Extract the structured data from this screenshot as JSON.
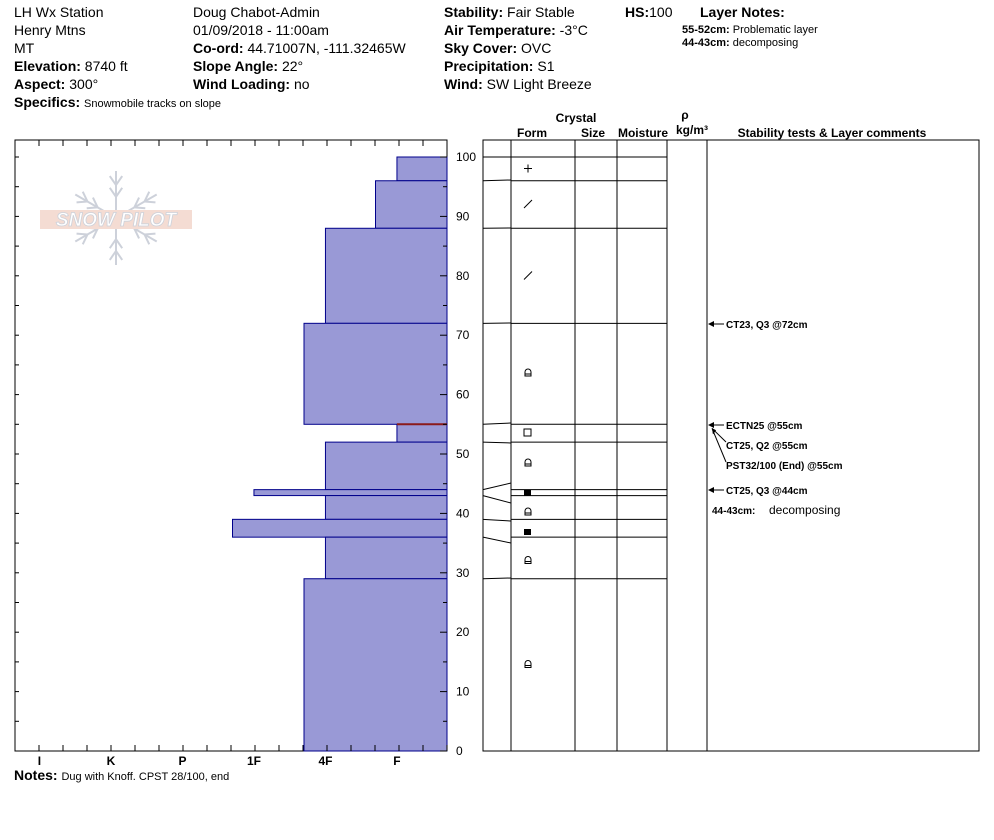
{
  "header": {
    "location": "LH Wx Station",
    "range": "Henry Mtns",
    "state": "MT",
    "elevation_label": "Elevation:",
    "elevation_value": "8740 ft",
    "aspect_label": "Aspect:",
    "aspect_value": "300°",
    "specifics_label": "Specifics:",
    "specifics_value": "Snowmobile tracks on slope",
    "observer": "Doug Chabot-Admin",
    "datetime": "01/09/2018 - 11:00am",
    "coord_label": "Co-ord:",
    "coord_value": "44.71007N, -111.32465W",
    "slope_label": "Slope Angle:",
    "slope_value": "22°",
    "wind_loading_label": "Wind Loading:",
    "wind_loading_value": "no",
    "stability_label": "Stability:",
    "stability_value": "Fair Stable",
    "air_temp_label": "Air Temperature:",
    "air_temp_value": "-3°C",
    "sky_label": "Sky Cover:",
    "sky_value": "OVC",
    "precip_label": "Precipitation:",
    "precip_value": "S1",
    "wind_label": "Wind:",
    "wind_value": "SW Light Breeze",
    "hs_label": "HS:",
    "hs_value": "100",
    "layer_notes_label": "Layer Notes:",
    "layer_notes": [
      {
        "range": "55-52cm:",
        "text": "Problematic layer"
      },
      {
        "range": "44-43cm:",
        "text": "decomposing"
      }
    ]
  },
  "logo_text": "SNOW PILOT",
  "notes_label": "Notes:",
  "notes_value": "Dug with Knoff. CPST 28/100, end",
  "column_headers": {
    "crystal": "Crystal",
    "form": "Form",
    "size": "Size",
    "moisture": "Moisture",
    "rho": "ρ",
    "density_unit": "kg/m³",
    "stability": "Stability tests & Layer comments"
  },
  "colors": {
    "layer_fill": "#9999d6",
    "layer_stroke": "#00008b",
    "problem_line": "#8b1a1a",
    "logo": "#c8cdd6"
  },
  "chart_data": {
    "type": "bar",
    "orientation": "horizontal",
    "ylabel": "",
    "ylim": [
      0,
      100
    ],
    "y_ticks": [
      0,
      10,
      20,
      30,
      40,
      50,
      60,
      70,
      80,
      90,
      100
    ],
    "hardness_scale": [
      "I",
      "K",
      "P",
      "1F",
      "4F",
      "F"
    ],
    "hardness_scale_note": "hardness index: F=1, 4F=2, 1F=3, P=4, K=5, I=6",
    "layers": [
      {
        "top": 100,
        "bottom": 96,
        "hardness_index": 0.7,
        "form": "+"
      },
      {
        "top": 96,
        "bottom": 88,
        "hardness_index": 1.0,
        "form": "/"
      },
      {
        "top": 88,
        "bottom": 72,
        "hardness_index": 1.7,
        "form": "/"
      },
      {
        "top": 72,
        "bottom": 55,
        "hardness_index": 2.0,
        "form": "∩"
      },
      {
        "top": 55,
        "bottom": 52,
        "hardness_index": 0.7,
        "form": "□"
      },
      {
        "top": 52,
        "bottom": 44,
        "hardness_index": 1.7,
        "form": "∩"
      },
      {
        "top": 44,
        "bottom": 43,
        "hardness_index": 2.7,
        "form": "■"
      },
      {
        "top": 43,
        "bottom": 39,
        "hardness_index": 1.7,
        "form": "∩"
      },
      {
        "top": 39,
        "bottom": 36,
        "hardness_index": 3.0,
        "form": "■"
      },
      {
        "top": 36,
        "bottom": 29,
        "hardness_index": 1.7,
        "form": "∩"
      },
      {
        "top": 29,
        "bottom": 0,
        "hardness_index": 2.0,
        "form": "∩"
      }
    ],
    "problem_layer_depth": 55,
    "stability_tests": [
      {
        "depth": 72,
        "text": "CT23, Q3 @72cm"
      },
      {
        "depth": 55,
        "text": "ECTN25 @55cm"
      },
      {
        "depth": 55,
        "text": "CT25, Q2 @55cm"
      },
      {
        "depth": 55,
        "text": "PST32/100 (End) @55cm"
      },
      {
        "depth": 44,
        "text": "CT25, Q3 @44cm"
      }
    ],
    "layer_comment": {
      "range": "44-43cm:",
      "text": "decomposing"
    }
  }
}
